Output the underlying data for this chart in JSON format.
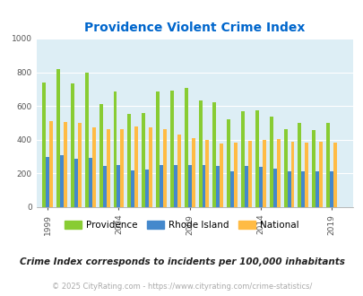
{
  "title": "Providence Violent Crime Index",
  "subtitle": "Crime Index corresponds to incidents per 100,000 inhabitants",
  "footer": "© 2025 CityRating.com - https://www.cityrating.com/crime-statistics/",
  "years": [
    1999,
    2000,
    2001,
    2002,
    2003,
    2004,
    2005,
    2006,
    2007,
    2008,
    2009,
    2010,
    2011,
    2012,
    2013,
    2014,
    2015,
    2016,
    2017,
    2018,
    2019
  ],
  "providence": [
    740,
    820,
    735,
    800,
    610,
    685,
    555,
    560,
    685,
    690,
    705,
    635,
    620,
    520,
    570,
    575,
    535,
    460,
    498,
    455,
    500
  ],
  "rhode_island": [
    300,
    310,
    285,
    290,
    245,
    250,
    220,
    225,
    250,
    252,
    252,
    250,
    245,
    215,
    245,
    240,
    230,
    215,
    215,
    210,
    215
  ],
  "national": [
    510,
    505,
    500,
    475,
    465,
    465,
    480,
    475,
    465,
    430,
    410,
    400,
    380,
    385,
    395,
    400,
    405,
    390,
    385,
    390,
    385
  ],
  "providence_color": "#88cc33",
  "rhode_island_color": "#4488cc",
  "national_color": "#ffbb44",
  "bg_color": "#ddeef5",
  "title_color": "#0066cc",
  "subtitle_color": "#222222",
  "footer_color": "#aaaaaa",
  "ylim": [
    0,
    1000
  ],
  "yticks": [
    0,
    200,
    400,
    600,
    800,
    1000
  ],
  "grid_color": "#ffffff",
  "bar_width": 0.25,
  "xtick_years": [
    1999,
    2004,
    2009,
    2014,
    2019
  ]
}
